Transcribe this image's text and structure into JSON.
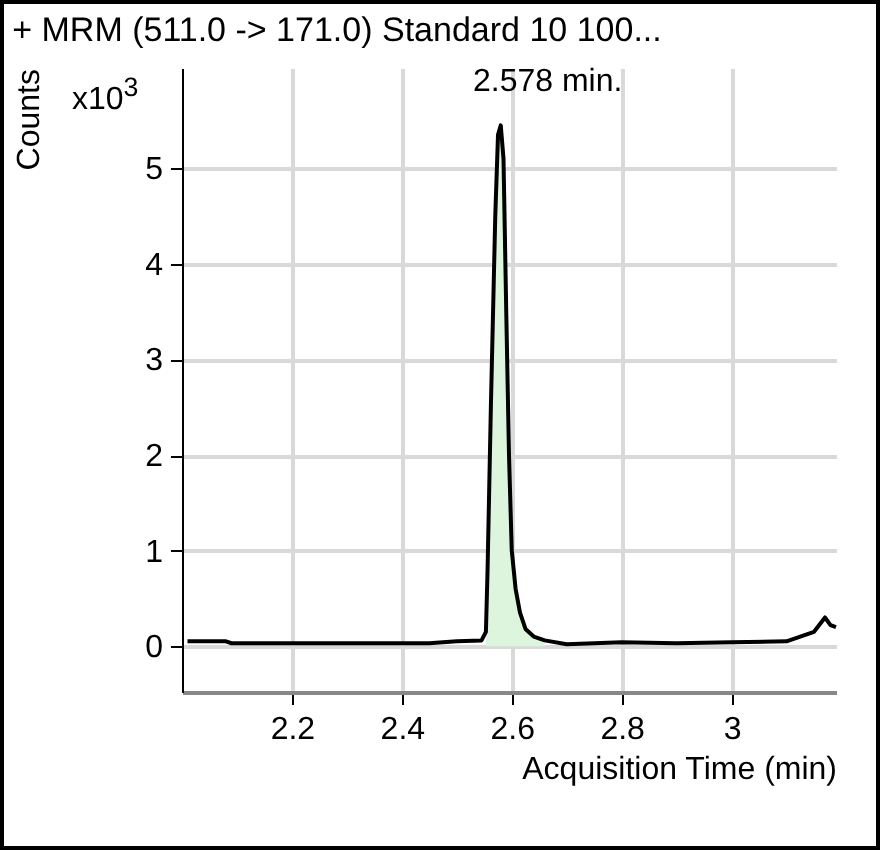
{
  "chart_data": {
    "type": "line",
    "title": "+ MRM (511.0 -> 171.0) Standard 10 100...",
    "xlabel": "Acquisition Time (min)",
    "ylabel": "Counts",
    "annotations": [
      "x10$^{3}$",
      {
        "text": "2.578 min.",
        "x": 2.578,
        "y": 5.45
      }
    ],
    "xlim": [
      2.0,
      3.19
    ],
    "ylim": [
      -0.48,
      6.05
    ],
    "xticks": [
      2.2,
      2.4,
      2.6,
      2.8,
      3
    ],
    "yticks": [
      0,
      1,
      2,
      3,
      4,
      5
    ],
    "grid": true,
    "series": [
      {
        "type": "area",
        "color": "#dcf5dc",
        "x": [
          2.553,
          2.556,
          2.562,
          2.57,
          2.575,
          2.58,
          2.585,
          2.59,
          2.595,
          2.6,
          2.607,
          2.615,
          2.625,
          2.64,
          2.66
        ],
        "values": [
          0.06,
          0.8,
          2.5,
          4.5,
          5.35,
          5.45,
          5.1,
          3.5,
          2.0,
          1.0,
          0.6,
          0.35,
          0.18,
          0.1,
          0.06
        ]
      },
      {
        "color": "#000000",
        "x": [
          2.01,
          2.08,
          2.09,
          2.3,
          2.45,
          2.5,
          2.545,
          2.553,
          2.556,
          2.562,
          2.57,
          2.575,
          2.58,
          2.585,
          2.59,
          2.595,
          2.6,
          2.607,
          2.615,
          2.625,
          2.64,
          2.66,
          2.7,
          2.8,
          2.9,
          3.0,
          3.1,
          3.15,
          3.17,
          3.18,
          3.19
        ],
        "values": [
          0.05,
          0.05,
          0.03,
          0.03,
          0.03,
          0.05,
          0.06,
          0.15,
          0.8,
          2.5,
          4.5,
          5.35,
          5.45,
          5.1,
          3.5,
          2.0,
          1.0,
          0.6,
          0.35,
          0.18,
          0.1,
          0.06,
          0.02,
          0.04,
          0.03,
          0.04,
          0.05,
          0.15,
          0.3,
          0.22,
          0.2
        ]
      }
    ]
  }
}
